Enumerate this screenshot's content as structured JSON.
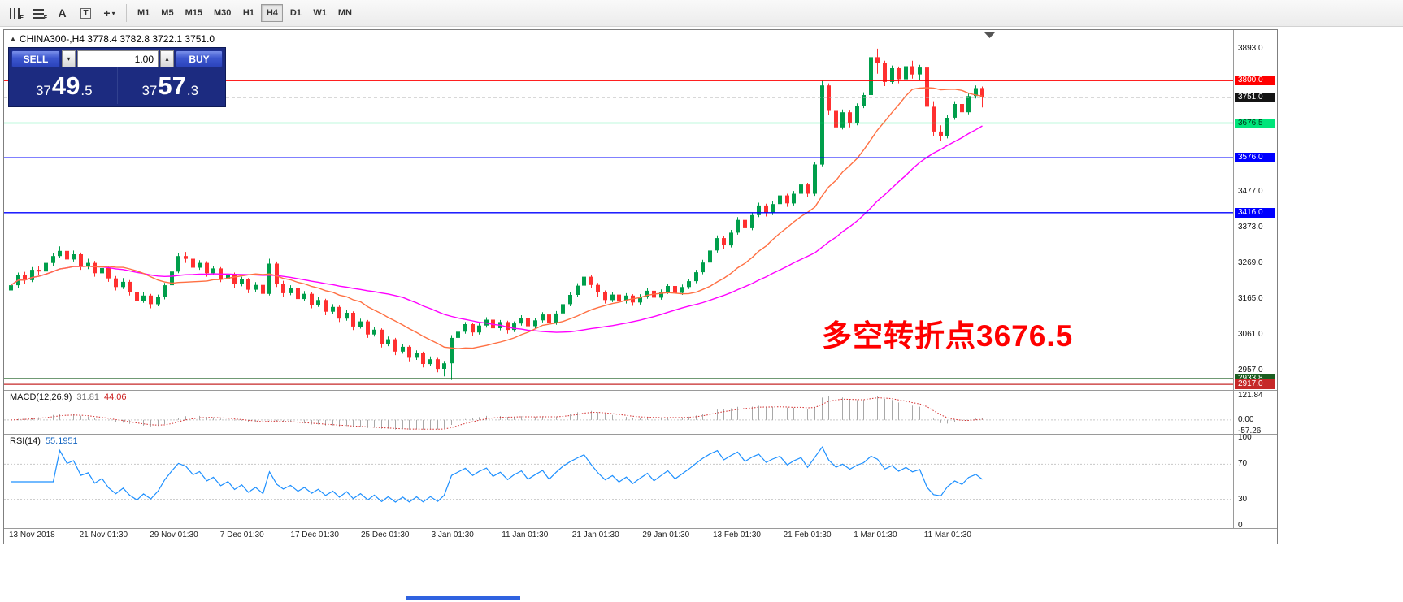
{
  "window": {
    "title_ohlc": "CHINA300-,H4  3778.4 3782.8 3722.1 3751.0"
  },
  "toolbar": {
    "icons": [
      {
        "name": "bar-chart-icon",
        "kind": "bars",
        "badge": "E"
      },
      {
        "name": "grid-chart-icon",
        "kind": "grid",
        "badge": "F"
      },
      {
        "name": "font-tool-icon",
        "kind": "glyph",
        "glyph": "A"
      },
      {
        "name": "text-box-tool-icon",
        "kind": "boxed",
        "glyph": "T"
      },
      {
        "name": "crosshair-tool-icon",
        "kind": "glyph",
        "glyph": "+",
        "dropdown": true
      }
    ],
    "timeframes": [
      {
        "label": "M1"
      },
      {
        "label": "M5"
      },
      {
        "label": "M15"
      },
      {
        "label": "M30"
      },
      {
        "label": "H1"
      },
      {
        "label": "H4",
        "selected": true
      },
      {
        "label": "D1"
      },
      {
        "label": "W1"
      },
      {
        "label": "MN"
      }
    ]
  },
  "trade_panel": {
    "sell_label": "SELL",
    "buy_label": "BUY",
    "volume": "1.00",
    "sell_price": {
      "prefix": "37",
      "big": "49",
      "suffix": ".5"
    },
    "buy_price": {
      "prefix": "37",
      "big": "57",
      "suffix": ".3"
    },
    "colors": {
      "panel_bg": "#1C2B80",
      "button_blue": "#3D57CF"
    }
  },
  "annotation": {
    "text": "多空转折点3676.5",
    "color": "#FF0000"
  },
  "chart_data": {
    "type": "candlestick",
    "symbol": "CHINA300-",
    "timeframe": "H4",
    "ohlc_current": {
      "open": 3778.4,
      "high": 3782.8,
      "low": 3722.1,
      "close": 3751.0
    },
    "bull_color": "#009E4B",
    "bear_color": "#FF3030",
    "y_axis": {
      "min": 2903,
      "max": 3947,
      "ticks": [
        "3893.0",
        "3477.0",
        "3373.0",
        "3269.0",
        "3165.0",
        "3061.0",
        "2957.0"
      ]
    },
    "levels": [
      {
        "price": 3800.0,
        "label": "3800.0",
        "line": "#FF0000",
        "bg": "#FF0000",
        "fg": "#FFFFFF"
      },
      {
        "price": 3751.0,
        "label": "3751.0",
        "line": "#B0B0B0",
        "bg": "#141414",
        "fg": "#FFFFFF",
        "style": "current"
      },
      {
        "price": 3676.5,
        "label": "3676.5",
        "line": "#00E57A",
        "bg": "#00E57A",
        "fg": "#00331A"
      },
      {
        "price": 3576.0,
        "label": "3576.0",
        "line": "#0000FF",
        "bg": "#0000FF",
        "fg": "#FFFFFF"
      },
      {
        "price": 3416.0,
        "label": "3416.0",
        "line": "#0000FF",
        "bg": "#0000FF",
        "fg": "#FFFFFF"
      },
      {
        "price": 2933.8,
        "label": "2933.8",
        "line": "#1B5E20",
        "bg": "#1B5E20",
        "fg": "#FFFFFF"
      },
      {
        "price": 2917.0,
        "label": "2917.0",
        "line": "#C62828",
        "bg": "#C62828",
        "fg": "#FFFFFF"
      }
    ],
    "ma_fast": {
      "period": 14,
      "color": "#FF7043"
    },
    "ma_slow": {
      "period": 34,
      "color": "#FF00FF"
    },
    "macd": {
      "label": "MACD(12,26,9)",
      "value_text": "31.81",
      "signal_text": "44.06",
      "axis": [
        "121.84",
        "0.00",
        "-57.26"
      ],
      "axis_max": 121.84,
      "axis_min": -57.26,
      "hist_color": "#A8A8A8",
      "signal_color": "#D32F2F"
    },
    "rsi": {
      "label": "RSI(14)",
      "value_text": "55.1951",
      "axis": [
        "100",
        "70",
        "30",
        "0"
      ],
      "levels": [
        70,
        30
      ],
      "color": "#1E90FF"
    },
    "x_axis": {
      "labels": [
        "13 Nov 2018",
        "21 Nov 01:30",
        "29 Nov 01:30",
        "7 Dec 01:30",
        "17 Dec 01:30",
        "25 Dec 01:30",
        "3 Jan 01:30",
        "11 Jan 01:30",
        "21 Jan 01:30",
        "29 Jan 01:30",
        "13 Feb 01:30",
        "21 Feb 01:30",
        "1 Mar 01:30",
        "11 Mar 01:30"
      ]
    },
    "candles": [
      [
        3190,
        3215,
        3165,
        3205
      ],
      [
        3205,
        3242,
        3198,
        3235
      ],
      [
        3235,
        3244,
        3208,
        3220
      ],
      [
        3220,
        3258,
        3214,
        3250
      ],
      [
        3250,
        3262,
        3235,
        3245
      ],
      [
        3245,
        3278,
        3240,
        3270
      ],
      [
        3270,
        3298,
        3262,
        3290
      ],
      [
        3290,
        3318,
        3284,
        3305
      ],
      [
        3305,
        3312,
        3270,
        3280
      ],
      [
        3280,
        3306,
        3274,
        3295
      ],
      [
        3295,
        3300,
        3250,
        3260
      ],
      [
        3260,
        3282,
        3252,
        3270
      ],
      [
        3270,
        3276,
        3230,
        3240
      ],
      [
        3240,
        3266,
        3234,
        3255
      ],
      [
        3255,
        3260,
        3215,
        3225
      ],
      [
        3225,
        3232,
        3190,
        3200
      ],
      [
        3200,
        3226,
        3194,
        3215
      ],
      [
        3215,
        3220,
        3175,
        3185
      ],
      [
        3185,
        3192,
        3148,
        3160
      ],
      [
        3160,
        3186,
        3154,
        3175
      ],
      [
        3175,
        3180,
        3138,
        3150
      ],
      [
        3150,
        3178,
        3144,
        3170
      ],
      [
        3170,
        3212,
        3164,
        3205
      ],
      [
        3205,
        3252,
        3200,
        3245
      ],
      [
        3245,
        3298,
        3240,
        3290
      ],
      [
        3290,
        3302,
        3270,
        3282
      ],
      [
        3282,
        3290,
        3246,
        3256
      ],
      [
        3256,
        3278,
        3250,
        3270
      ],
      [
        3270,
        3275,
        3230,
        3240
      ],
      [
        3240,
        3262,
        3234,
        3254
      ],
      [
        3254,
        3258,
        3214,
        3224
      ],
      [
        3224,
        3246,
        3218,
        3238
      ],
      [
        3238,
        3242,
        3198,
        3208
      ],
      [
        3208,
        3230,
        3202,
        3222
      ],
      [
        3222,
        3226,
        3182,
        3192
      ],
      [
        3192,
        3214,
        3186,
        3206
      ],
      [
        3206,
        3210,
        3170,
        3180
      ],
      [
        3180,
        3282,
        3175,
        3268
      ],
      [
        3268,
        3274,
        3200,
        3210
      ],
      [
        3210,
        3218,
        3172,
        3182
      ],
      [
        3182,
        3205,
        3176,
        3198
      ],
      [
        3198,
        3202,
        3155,
        3165
      ],
      [
        3165,
        3188,
        3158,
        3180
      ],
      [
        3180,
        3184,
        3138,
        3148
      ],
      [
        3148,
        3170,
        3142,
        3162
      ],
      [
        3162,
        3166,
        3118,
        3128
      ],
      [
        3128,
        3150,
        3122,
        3142
      ],
      [
        3142,
        3146,
        3098,
        3108
      ],
      [
        3108,
        3132,
        3102,
        3125
      ],
      [
        3125,
        3129,
        3075,
        3085
      ],
      [
        3085,
        3108,
        3079,
        3100
      ],
      [
        3100,
        3104,
        3052,
        3062
      ],
      [
        3062,
        3084,
        3056,
        3076
      ],
      [
        3076,
        3080,
        3024,
        3034
      ],
      [
        3034,
        3056,
        3028,
        3048
      ],
      [
        3048,
        3052,
        3002,
        3012
      ],
      [
        3012,
        3034,
        3006,
        3026
      ],
      [
        3026,
        3030,
        2984,
        2994
      ],
      [
        2994,
        3016,
        2988,
        3008
      ],
      [
        3008,
        3012,
        2966,
        2976
      ],
      [
        2976,
        2998,
        2970,
        2990
      ],
      [
        2990,
        2994,
        2952,
        2962
      ],
      [
        2962,
        2985,
        2940,
        2978
      ],
      [
        2978,
        3060,
        2930,
        3052
      ],
      [
        3052,
        3078,
        3040,
        3070
      ],
      [
        3070,
        3098,
        3064,
        3092
      ],
      [
        3092,
        3096,
        3058,
        3068
      ],
      [
        3068,
        3094,
        3062,
        3088
      ],
      [
        3088,
        3112,
        3082,
        3105
      ],
      [
        3105,
        3109,
        3070,
        3080
      ],
      [
        3080,
        3104,
        3074,
        3098
      ],
      [
        3098,
        3102,
        3064,
        3075
      ],
      [
        3075,
        3100,
        3069,
        3094
      ],
      [
        3094,
        3118,
        3088,
        3110
      ],
      [
        3110,
        3114,
        3076,
        3086
      ],
      [
        3086,
        3110,
        3080,
        3103
      ],
      [
        3103,
        3127,
        3097,
        3120
      ],
      [
        3120,
        3124,
        3086,
        3096
      ],
      [
        3096,
        3130,
        3090,
        3123
      ],
      [
        3123,
        3157,
        3117,
        3150
      ],
      [
        3150,
        3184,
        3144,
        3177
      ],
      [
        3177,
        3211,
        3171,
        3204
      ],
      [
        3204,
        3238,
        3198,
        3230
      ],
      [
        3230,
        3235,
        3196,
        3206
      ],
      [
        3206,
        3212,
        3172,
        3184
      ],
      [
        3184,
        3190,
        3152,
        3162
      ],
      [
        3162,
        3186,
        3156,
        3178
      ],
      [
        3178,
        3183,
        3148,
        3158
      ],
      [
        3158,
        3182,
        3152,
        3175
      ],
      [
        3175,
        3179,
        3145,
        3155
      ],
      [
        3155,
        3179,
        3149,
        3172
      ],
      [
        3172,
        3196,
        3166,
        3189
      ],
      [
        3189,
        3193,
        3159,
        3169
      ],
      [
        3169,
        3193,
        3163,
        3186
      ],
      [
        3186,
        3210,
        3180,
        3203
      ],
      [
        3203,
        3207,
        3173,
        3183
      ],
      [
        3183,
        3207,
        3177,
        3200
      ],
      [
        3200,
        3224,
        3194,
        3217
      ],
      [
        3217,
        3250,
        3211,
        3243
      ],
      [
        3243,
        3279,
        3237,
        3271
      ],
      [
        3271,
        3314,
        3265,
        3306
      ],
      [
        3306,
        3350,
        3300,
        3342
      ],
      [
        3342,
        3347,
        3311,
        3321
      ],
      [
        3321,
        3366,
        3315,
        3358
      ],
      [
        3358,
        3403,
        3352,
        3395
      ],
      [
        3395,
        3400,
        3361,
        3371
      ],
      [
        3371,
        3417,
        3365,
        3409
      ],
      [
        3409,
        3445,
        3403,
        3437
      ],
      [
        3437,
        3442,
        3405,
        3415
      ],
      [
        3415,
        3449,
        3409,
        3441
      ],
      [
        3441,
        3474,
        3435,
        3466
      ],
      [
        3466,
        3471,
        3433,
        3443
      ],
      [
        3443,
        3479,
        3437,
        3471
      ],
      [
        3471,
        3506,
        3465,
        3498
      ],
      [
        3498,
        3503,
        3461,
        3471
      ],
      [
        3471,
        3564,
        3465,
        3556
      ],
      [
        3556,
        3800,
        3551,
        3786
      ],
      [
        3786,
        3792,
        3700,
        3712
      ],
      [
        3712,
        3730,
        3652,
        3664
      ],
      [
        3664,
        3716,
        3658,
        3708
      ],
      [
        3708,
        3713,
        3664,
        3676
      ],
      [
        3676,
        3734,
        3670,
        3726
      ],
      [
        3726,
        3766,
        3720,
        3758
      ],
      [
        3758,
        3880,
        3752,
        3868
      ],
      [
        3868,
        3893,
        3820,
        3852
      ],
      [
        3852,
        3858,
        3784,
        3796
      ],
      [
        3796,
        3844,
        3790,
        3836
      ],
      [
        3836,
        3841,
        3792,
        3804
      ],
      [
        3804,
        3850,
        3798,
        3842
      ],
      [
        3842,
        3858,
        3806,
        3818
      ],
      [
        3818,
        3846,
        3800,
        3838
      ],
      [
        3838,
        3843,
        3712,
        3724
      ],
      [
        3724,
        3740,
        3640,
        3652
      ],
      [
        3652,
        3670,
        3625,
        3638
      ],
      [
        3638,
        3700,
        3632,
        3692
      ],
      [
        3692,
        3740,
        3686,
        3732
      ],
      [
        3732,
        3737,
        3696,
        3708
      ],
      [
        3708,
        3762,
        3702,
        3755
      ],
      [
        3755,
        3786,
        3748,
        3778
      ],
      [
        3778.4,
        3782.8,
        3722.1,
        3751.0
      ]
    ]
  }
}
